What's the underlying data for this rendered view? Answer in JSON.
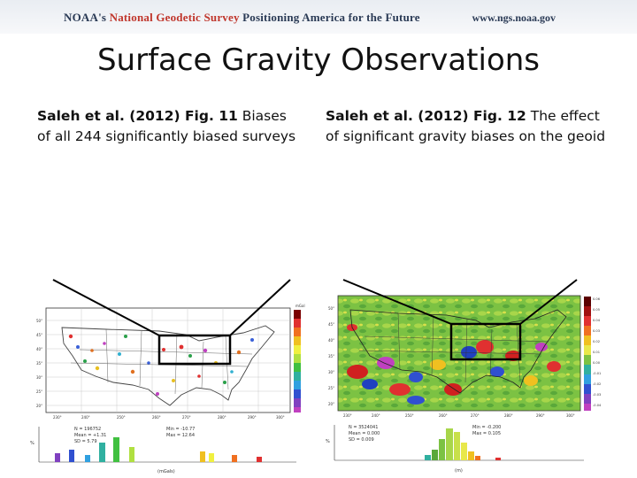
{
  "banner": {
    "org_prefix": "NOAA's ",
    "org_name": "National Geodetic Survey",
    "tagline": " Positioning America for the Future",
    "url": "www.ngs.noaa.gov"
  },
  "slide": {
    "title": "Surface Gravity Observations"
  },
  "captions": {
    "left": {
      "citation": "Saleh et al. (2012) Fig. 11",
      "text": " Biases of all 244 significantly biased surveys"
    },
    "right": {
      "citation": "Saleh et al. (2012) Fig. 12",
      "text": " The effect of significant gravity biases on the geoid"
    }
  },
  "colors": {
    "banner_red": "#c0362c",
    "banner_navy": "#2a3a55",
    "geoid_background": "#7cc243",
    "callout_box": "#000000"
  },
  "figures": {
    "left": {
      "x_ticks": [
        "230°",
        "240°",
        "250°",
        "260°",
        "270°",
        "280°",
        "290°",
        "300°"
      ],
      "y_ticks": [
        "50°",
        "45°",
        "40°",
        "35°",
        "30°",
        "25°",
        "20°"
      ],
      "colorbar_unit": "mGal",
      "stats_left": [
        "N = 196752",
        "Mean = +1.31",
        "SD = 5.79"
      ],
      "stats_right": [
        "Min = -10.77",
        "Max = 12.64"
      ],
      "hist_axis_label": "(mGals)",
      "hist_y_label": "%"
    },
    "right": {
      "x_ticks": [
        "230°",
        "240°",
        "250°",
        "260°",
        "270°",
        "280°",
        "290°",
        "300°"
      ],
      "y_ticks": [
        "50°",
        "45°",
        "40°",
        "35°",
        "30°",
        "25°",
        "20°"
      ],
      "colorbar_ticks": [
        "0.06",
        "0.05",
        "0.04",
        "0.03",
        "0.02",
        "0.01",
        "0.00",
        "-0.01",
        "-0.02",
        "-0.03",
        "-0.04"
      ],
      "stats_left": [
        "N = 3524041",
        "Mean = 0.000",
        "SD = 0.009"
      ],
      "stats_right": [
        "Min = -0.200",
        "Max = 0.105"
      ],
      "hist_axis_label": "(m)",
      "hist_y_label": "%"
    }
  }
}
